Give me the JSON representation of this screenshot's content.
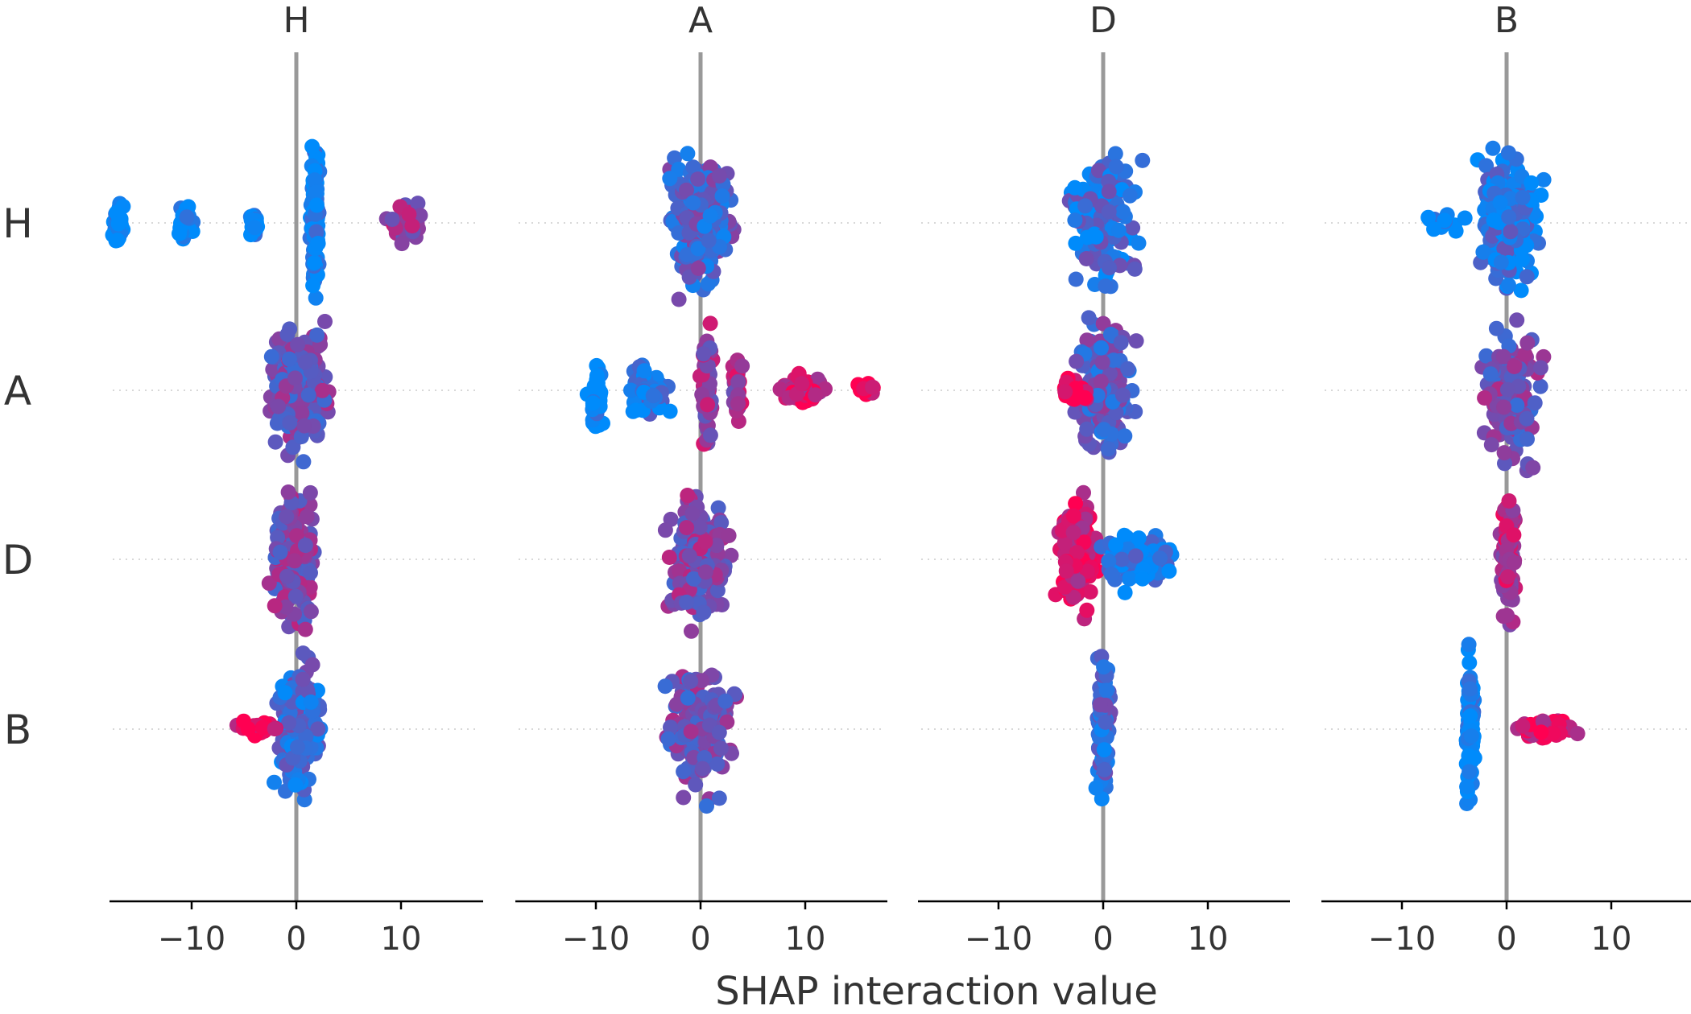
{
  "chart_data": {
    "type": "scatter",
    "subtype": "beeswarm",
    "xlabel": "SHAP interaction value",
    "xlim": [
      -18,
      18
    ],
    "xticks": [
      -10,
      0,
      10
    ],
    "xtick_labels": [
      "−10",
      "0",
      "10"
    ],
    "features": [
      "H",
      "A",
      "D",
      "B"
    ],
    "panel_titles": [
      "H",
      "A",
      "D",
      "B"
    ],
    "row_labels": [
      "H",
      "A",
      "D",
      "B"
    ],
    "grid": false,
    "legend": "none",
    "colors": {
      "low": "#008bfb",
      "high": "#ff0052",
      "zero_line": "#999999",
      "row_guide": "#cccccc",
      "axis": "#000000"
    },
    "cells": [
      {
        "column": "H",
        "row": "H",
        "clusters": [
          {
            "x": -17,
            "spread": 0.4,
            "height": 1.0,
            "n": 30,
            "c": 0
          },
          {
            "x": -10.5,
            "spread": 0.5,
            "height": 0.9,
            "n": 30,
            "c": 0
          },
          {
            "x": -4,
            "spread": 0.3,
            "height": 0.7,
            "n": 18,
            "c": 0
          },
          {
            "x": 1.8,
            "spread": 0.3,
            "height": 3.5,
            "n": 120,
            "c": 0.02
          },
          {
            "x": 10.5,
            "spread": 1.2,
            "height": 1.0,
            "n": 40,
            "c": 0.6
          }
        ]
      },
      {
        "column": "H",
        "row": "A",
        "clusters": [
          {
            "x": 0,
            "spread": 2.2,
            "height": 3.2,
            "n": 220,
            "c": 0.45
          }
        ]
      },
      {
        "column": "H",
        "row": "D",
        "clusters": [
          {
            "x": -0.3,
            "spread": 1.5,
            "height": 3.0,
            "n": 180,
            "c": 0.5
          }
        ]
      },
      {
        "column": "H",
        "row": "B",
        "clusters": [
          {
            "x": 0.3,
            "spread": 1.6,
            "height": 3.2,
            "n": 170,
            "c": 0.25
          },
          {
            "x": -4,
            "spread": 1.4,
            "height": 0.4,
            "n": 20,
            "c": 0.95
          }
        ]
      },
      {
        "column": "A",
        "row": "H",
        "clusters": [
          {
            "x": 0,
            "spread": 2.2,
            "height": 3.2,
            "n": 220,
            "c": 0.3
          }
        ]
      },
      {
        "column": "A",
        "row": "A",
        "clusters": [
          {
            "x": -10,
            "spread": 0.5,
            "height": 2.0,
            "n": 40,
            "c": 0
          },
          {
            "x": -5,
            "spread": 1.4,
            "height": 1.2,
            "n": 60,
            "c": 0.15
          },
          {
            "x": 0.6,
            "spread": 0.4,
            "height": 3.5,
            "n": 60,
            "c": 0.6
          },
          {
            "x": 3.5,
            "spread": 0.4,
            "height": 1.6,
            "n": 30,
            "c": 0.65
          },
          {
            "x": 9.5,
            "spread": 1.7,
            "height": 1.0,
            "n": 50,
            "c": 0.85
          },
          {
            "x": 15.5,
            "spread": 0.8,
            "height": 0.4,
            "n": 12,
            "c": 1
          }
        ]
      },
      {
        "column": "A",
        "row": "D",
        "clusters": [
          {
            "x": 0,
            "spread": 2.0,
            "height": 3.2,
            "n": 190,
            "c": 0.5
          }
        ]
      },
      {
        "column": "A",
        "row": "B",
        "clusters": [
          {
            "x": 0,
            "spread": 2.5,
            "height": 3.3,
            "n": 140,
            "c": 0.45
          }
        ]
      },
      {
        "column": "D",
        "row": "H",
        "clusters": [
          {
            "x": 0,
            "spread": 2.4,
            "height": 3.1,
            "n": 150,
            "c": 0.2
          }
        ]
      },
      {
        "column": "D",
        "row": "A",
        "clusters": [
          {
            "x": 0,
            "spread": 2.0,
            "height": 3.2,
            "n": 190,
            "c": 0.35
          },
          {
            "x": -2.8,
            "spread": 0.8,
            "height": 0.6,
            "n": 25,
            "c": 0.95
          }
        ]
      },
      {
        "column": "D",
        "row": "D",
        "clusters": [
          {
            "x": -2.5,
            "spread": 1.4,
            "height": 3.2,
            "n": 130,
            "c": 0.85
          },
          {
            "x": 3.5,
            "spread": 2.6,
            "height": 1.3,
            "n": 100,
            "c": 0.1
          }
        ]
      },
      {
        "column": "D",
        "row": "B",
        "clusters": [
          {
            "x": 0,
            "spread": 0.5,
            "height": 3.7,
            "n": 110,
            "c": 0.25
          }
        ]
      },
      {
        "column": "B",
        "row": "H",
        "clusters": [
          {
            "x": 0.3,
            "spread": 2.2,
            "height": 3.3,
            "n": 170,
            "c": 0.15
          },
          {
            "x": -6,
            "spread": 1.5,
            "height": 0.4,
            "n": 14,
            "c": 0
          }
        ]
      },
      {
        "column": "B",
        "row": "A",
        "clusters": [
          {
            "x": 0.5,
            "spread": 2.2,
            "height": 3.2,
            "n": 160,
            "c": 0.45
          }
        ]
      },
      {
        "column": "B",
        "row": "D",
        "clusters": [
          {
            "x": 0.2,
            "spread": 0.5,
            "height": 3.0,
            "n": 90,
            "c": 0.7
          }
        ]
      },
      {
        "column": "B",
        "row": "B",
        "clusters": [
          {
            "x": -3.5,
            "spread": 0.3,
            "height": 3.7,
            "n": 110,
            "c": 0
          },
          {
            "x": 4,
            "spread": 2.2,
            "height": 0.5,
            "n": 70,
            "c": 0.85
          }
        ]
      }
    ]
  }
}
